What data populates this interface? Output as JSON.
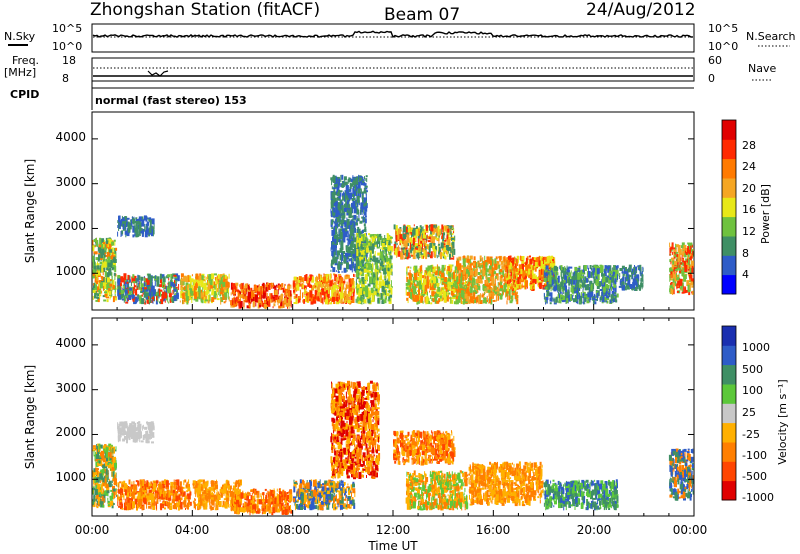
{
  "header": {
    "station": "Zhongshan Station (fitACF)",
    "beam": "Beam 07",
    "date": "24/Aug/2012"
  },
  "status_panel": {
    "nsky_label": "N.Sky",
    "nsky_ticks": [
      "10^5",
      "10^0"
    ],
    "nsearch_label": "N.Search",
    "nsearch_ticks": [
      "10^5",
      "10^0"
    ],
    "freq_label": "Freq.",
    "freq_unit": "[MHz]",
    "freq_ticks": [
      "18",
      "8"
    ],
    "nave_label": "Nave",
    "nave_ticks": [
      "60",
      "0"
    ],
    "cpid_label": "CPID",
    "cpid_text": "normal (fast stereo) 153"
  },
  "chart_data": [
    {
      "type": "heatmap",
      "name": "Power",
      "xlabel": "",
      "ylabel": "Slant Range [km]",
      "xlim_hours": [
        0,
        24
      ],
      "ylim": [
        180,
        4600
      ],
      "yticks": [
        "1000",
        "2000",
        "3000",
        "4000"
      ],
      "colorbar": {
        "label": "Power [dB]",
        "ticks": [
          "28",
          "24",
          "20",
          "16",
          "12",
          "8",
          "4"
        ],
        "colors": [
          "#0000ff",
          "#2e5cc8",
          "#3f8f65",
          "#6fc23f",
          "#e8e818",
          "#f5a623",
          "#ff7a00",
          "#ff2a00",
          "#e00000"
        ]
      },
      "regions": [
        {
          "t": [
            0.0,
            1.0
          ],
          "r": [
            350,
            1800
          ],
          "c": [
            2,
            3,
            4,
            6
          ]
        },
        {
          "t": [
            1.0,
            3.5
          ],
          "r": [
            300,
            1000
          ],
          "c": [
            1,
            2,
            3,
            7
          ]
        },
        {
          "t": [
            1.0,
            2.5
          ],
          "r": [
            1800,
            2300
          ],
          "c": [
            1,
            2
          ]
        },
        {
          "t": [
            3.5,
            5.5
          ],
          "r": [
            300,
            1000
          ],
          "c": [
            3,
            4,
            5,
            6
          ]
        },
        {
          "t": [
            5.5,
            8.0
          ],
          "r": [
            200,
            800
          ],
          "c": [
            5,
            6,
            7,
            8
          ]
        },
        {
          "t": [
            8.0,
            10.5
          ],
          "r": [
            300,
            1000
          ],
          "c": [
            4,
            5,
            6,
            7
          ]
        },
        {
          "t": [
            9.5,
            11.0
          ],
          "r": [
            1000,
            3200
          ],
          "c": [
            1,
            2
          ]
        },
        {
          "t": [
            10.5,
            12.0
          ],
          "r": [
            300,
            1900
          ],
          "c": [
            2,
            3,
            4
          ]
        },
        {
          "t": [
            12.0,
            14.5
          ],
          "r": [
            1300,
            2100
          ],
          "c": [
            2,
            4,
            5,
            7
          ]
        },
        {
          "t": [
            12.5,
            15.0
          ],
          "r": [
            300,
            1200
          ],
          "c": [
            3,
            4,
            6
          ]
        },
        {
          "t": [
            14.5,
            17.0
          ],
          "r": [
            300,
            1400
          ],
          "c": [
            3,
            5,
            6
          ]
        },
        {
          "t": [
            16.5,
            18.5
          ],
          "r": [
            600,
            1400
          ],
          "c": [
            4,
            6,
            7
          ]
        },
        {
          "t": [
            18.0,
            21.0
          ],
          "r": [
            300,
            1200
          ],
          "c": [
            1,
            2,
            3
          ]
        },
        {
          "t": [
            21.0,
            22.0
          ],
          "r": [
            600,
            1200
          ],
          "c": [
            1,
            2
          ]
        },
        {
          "t": [
            23.0,
            24.0
          ],
          "r": [
            500,
            1700
          ],
          "c": [
            3,
            5,
            7
          ]
        }
      ]
    },
    {
      "type": "heatmap",
      "name": "Velocity",
      "xlabel": "Time UT",
      "ylabel": "Slant Range [km]",
      "xlim_hours": [
        0,
        24
      ],
      "ylim": [
        180,
        4600
      ],
      "yticks": [
        "1000",
        "2000",
        "3000",
        "4000"
      ],
      "xticks": [
        "00:00",
        "04:00",
        "08:00",
        "12:00",
        "16:00",
        "20:00",
        "00:00"
      ],
      "colorbar": {
        "label": "Velocity [m s⁻¹]",
        "ticks": [
          "1000",
          "500",
          "100",
          "25",
          "-25",
          "-100",
          "-500",
          "-1000"
        ],
        "colors": [
          "#e00000",
          "#ff4500",
          "#ff7f00",
          "#ffb000",
          "#c8c8c8",
          "#5cc83a",
          "#3f8f65",
          "#2e5cc8",
          "#1a2fb0"
        ]
      },
      "regions": [
        {
          "t": [
            0.0,
            1.0
          ],
          "r": [
            350,
            1800
          ],
          "c": [
            2,
            3,
            5,
            6
          ]
        },
        {
          "t": [
            1.0,
            2.5
          ],
          "r": [
            1800,
            2300
          ],
          "c": [
            4
          ]
        },
        {
          "t": [
            1.0,
            4.0
          ],
          "r": [
            300,
            1000
          ],
          "c": [
            1,
            2,
            3
          ]
        },
        {
          "t": [
            4.0,
            6.0
          ],
          "r": [
            300,
            1000
          ],
          "c": [
            2,
            3
          ]
        },
        {
          "t": [
            5.5,
            8.0
          ],
          "r": [
            200,
            800
          ],
          "c": [
            1,
            2,
            3
          ]
        },
        {
          "t": [
            8.0,
            10.5
          ],
          "r": [
            300,
            1000
          ],
          "c": [
            2,
            3,
            6,
            7
          ]
        },
        {
          "t": [
            9.5,
            11.5
          ],
          "r": [
            1000,
            3200
          ],
          "c": [
            0,
            2,
            3
          ]
        },
        {
          "t": [
            12.0,
            14.5
          ],
          "r": [
            1300,
            2100
          ],
          "c": [
            1,
            2,
            3
          ]
        },
        {
          "t": [
            12.5,
            15.0
          ],
          "r": [
            300,
            1200
          ],
          "c": [
            2,
            3,
            5
          ]
        },
        {
          "t": [
            15.0,
            18.0
          ],
          "r": [
            400,
            1400
          ],
          "c": [
            2,
            3
          ]
        },
        {
          "t": [
            18.0,
            21.0
          ],
          "r": [
            300,
            1000
          ],
          "c": [
            5,
            6,
            7
          ]
        },
        {
          "t": [
            23.0,
            24.0
          ],
          "r": [
            500,
            1700
          ],
          "c": [
            2,
            6,
            7
          ]
        }
      ]
    }
  ]
}
